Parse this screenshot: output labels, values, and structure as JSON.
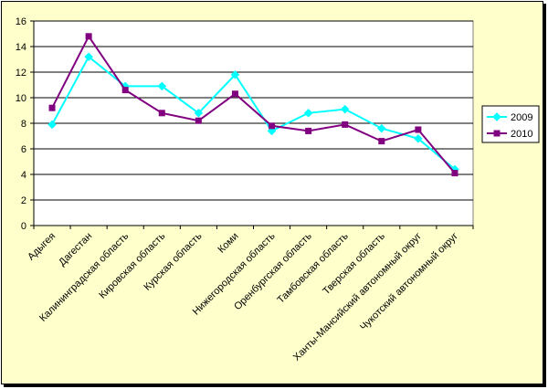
{
  "chart_data": {
    "type": "line",
    "categories": [
      "Адыгея",
      "Дагестан",
      "Калининградская область",
      "Кировская область",
      "Курская область",
      "Коми",
      "Нижегородская область",
      "Оренбургская область",
      "Тамбовская область",
      "Тверская область",
      "Ханты-Мансийский автономный округ",
      "Чукотский автономный округ"
    ],
    "series": [
      {
        "name": "2009",
        "color": "#00ffff",
        "marker": "diamond",
        "values": [
          7.9,
          13.2,
          10.9,
          10.9,
          8.8,
          11.8,
          7.4,
          8.8,
          9.1,
          7.6,
          6.8,
          4.4
        ]
      },
      {
        "name": "2010",
        "color": "#800080",
        "marker": "square",
        "values": [
          9.2,
          14.8,
          10.6,
          8.8,
          8.2,
          10.3,
          7.8,
          7.4,
          7.9,
          6.6,
          7.5,
          4.1
        ]
      }
    ],
    "ylim": [
      0,
      16
    ],
    "yticks": [
      0,
      2,
      4,
      6,
      8,
      10,
      12,
      14,
      16
    ],
    "grid": true,
    "legend_position": "right",
    "title": "",
    "xlabel": "",
    "ylabel": ""
  }
}
